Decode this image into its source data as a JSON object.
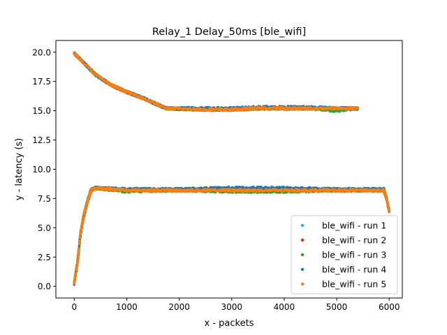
{
  "chart_data": {
    "type": "scatter",
    "title": "Relay_1 Delay_50ms [ble_wifi]",
    "xlabel": "x - packets",
    "ylabel": "y - latency (s)",
    "xlim": [
      -350,
      6250
    ],
    "ylim": [
      -1.0,
      21.0
    ],
    "xticks": [
      0,
      1000,
      2000,
      3000,
      4000,
      5000,
      6000
    ],
    "yticks": [
      0.0,
      2.5,
      5.0,
      7.5,
      10.0,
      12.5,
      15.0,
      17.5,
      20.0
    ],
    "xtick_labels": [
      "0",
      "1000",
      "2000",
      "3000",
      "4000",
      "5000",
      "6000"
    ],
    "ytick_labels": [
      "0.0",
      "2.5",
      "5.0",
      "7.5",
      "10.0",
      "12.5",
      "15.0",
      "17.5",
      "20.0"
    ],
    "grid": false,
    "legend_position": "lower-right",
    "series": [
      {
        "name": "ble_wifi - run 1",
        "color": "#17becf",
        "upper_curve": [
          [
            0,
            19.9
          ],
          [
            200,
            19.0
          ],
          [
            400,
            18.1
          ],
          [
            700,
            17.2
          ],
          [
            1000,
            16.6
          ],
          [
            1300,
            16.1
          ],
          [
            1500,
            15.7
          ],
          [
            1750,
            15.2
          ],
          [
            2500,
            15.1
          ],
          [
            3000,
            15.1
          ],
          [
            3500,
            15.2
          ],
          [
            4000,
            15.2
          ],
          [
            4500,
            15.2
          ],
          [
            5000,
            15.2
          ],
          [
            5400,
            15.2
          ]
        ],
        "lower_curve": [
          [
            0,
            0.3
          ],
          [
            60,
            2.0
          ],
          [
            120,
            4.5
          ],
          [
            180,
            6.0
          ],
          [
            250,
            7.2
          ],
          [
            320,
            8.2
          ],
          [
            400,
            8.4
          ],
          [
            1000,
            8.2
          ],
          [
            2000,
            8.2
          ],
          [
            3000,
            8.3
          ],
          [
            4000,
            8.3
          ],
          [
            5000,
            8.2
          ],
          [
            5900,
            8.2
          ],
          [
            5950,
            7.5
          ],
          [
            6000,
            6.4
          ]
        ]
      },
      {
        "name": "ble_wifi - run 2",
        "color": "#d62728",
        "upper_curve": [
          [
            0,
            19.9
          ],
          [
            200,
            19.0
          ],
          [
            400,
            18.1
          ],
          [
            700,
            17.2
          ],
          [
            1000,
            16.6
          ],
          [
            1300,
            16.1
          ],
          [
            1500,
            15.7
          ],
          [
            1750,
            15.2
          ],
          [
            2500,
            15.1
          ],
          [
            3000,
            15.1
          ],
          [
            3500,
            15.2
          ],
          [
            4000,
            15.2
          ],
          [
            4500,
            15.2
          ],
          [
            5000,
            15.2
          ],
          [
            5400,
            15.2
          ]
        ],
        "lower_curve": [
          [
            0,
            0.3
          ],
          [
            60,
            2.0
          ],
          [
            120,
            4.5
          ],
          [
            180,
            6.0
          ],
          [
            250,
            7.2
          ],
          [
            320,
            8.2
          ],
          [
            400,
            8.4
          ],
          [
            1000,
            8.2
          ],
          [
            2000,
            8.2
          ],
          [
            3000,
            8.3
          ],
          [
            4000,
            8.3
          ],
          [
            5000,
            8.2
          ],
          [
            5900,
            8.2
          ],
          [
            5950,
            7.5
          ],
          [
            6000,
            6.4
          ]
        ]
      },
      {
        "name": "ble_wifi - run 3",
        "color": "#2ca02c",
        "upper_curve": [
          [
            0,
            19.9
          ],
          [
            200,
            19.0
          ],
          [
            400,
            18.1
          ],
          [
            700,
            17.2
          ],
          [
            1000,
            16.6
          ],
          [
            1300,
            16.1
          ],
          [
            1500,
            15.7
          ],
          [
            1750,
            15.2
          ],
          [
            2500,
            15.1
          ],
          [
            3000,
            15.1
          ],
          [
            3500,
            15.2
          ],
          [
            4000,
            15.2
          ],
          [
            4500,
            15.2
          ],
          [
            5000,
            15.0
          ],
          [
            5400,
            15.2
          ]
        ],
        "lower_curve": [
          [
            0,
            0.3
          ],
          [
            60,
            2.0
          ],
          [
            120,
            4.5
          ],
          [
            180,
            6.0
          ],
          [
            250,
            7.2
          ],
          [
            320,
            8.2
          ],
          [
            400,
            8.4
          ],
          [
            1000,
            8.1
          ],
          [
            2000,
            8.2
          ],
          [
            3000,
            8.1
          ],
          [
            4000,
            8.1
          ],
          [
            5000,
            8.2
          ],
          [
            5900,
            8.2
          ],
          [
            5950,
            7.5
          ],
          [
            6000,
            6.4
          ]
        ]
      },
      {
        "name": "ble_wifi - run 4",
        "color": "#1f77b4",
        "upper_curve": [
          [
            0,
            19.9
          ],
          [
            200,
            19.0
          ],
          [
            400,
            18.1
          ],
          [
            700,
            17.2
          ],
          [
            1000,
            16.6
          ],
          [
            1300,
            16.1
          ],
          [
            1500,
            15.7
          ],
          [
            1750,
            15.2
          ],
          [
            2500,
            15.2
          ],
          [
            3000,
            15.2
          ],
          [
            3500,
            15.3
          ],
          [
            4000,
            15.3
          ],
          [
            4500,
            15.3
          ],
          [
            5000,
            15.2
          ],
          [
            5400,
            15.2
          ]
        ],
        "lower_curve": [
          [
            0,
            0.3
          ],
          [
            60,
            2.0
          ],
          [
            120,
            4.5
          ],
          [
            180,
            6.0
          ],
          [
            250,
            7.2
          ],
          [
            320,
            8.2
          ],
          [
            400,
            8.4
          ],
          [
            1000,
            8.3
          ],
          [
            2000,
            8.3
          ],
          [
            3000,
            8.4
          ],
          [
            4000,
            8.4
          ],
          [
            5000,
            8.3
          ],
          [
            5900,
            8.3
          ],
          [
            5950,
            7.5
          ],
          [
            6000,
            6.4
          ]
        ]
      },
      {
        "name": "ble_wifi - run 5",
        "color": "#ff7f0e",
        "upper_curve": [
          [
            0,
            19.9
          ],
          [
            200,
            19.0
          ],
          [
            400,
            18.1
          ],
          [
            700,
            17.2
          ],
          [
            1000,
            16.6
          ],
          [
            1300,
            16.1
          ],
          [
            1500,
            15.7
          ],
          [
            1750,
            15.2
          ],
          [
            2500,
            15.1
          ],
          [
            3000,
            15.1
          ],
          [
            3500,
            15.2
          ],
          [
            4000,
            15.2
          ],
          [
            4500,
            15.2
          ],
          [
            5000,
            15.2
          ],
          [
            5400,
            15.2
          ]
        ],
        "lower_curve": [
          [
            0,
            0.3
          ],
          [
            60,
            2.0
          ],
          [
            120,
            4.5
          ],
          [
            180,
            6.0
          ],
          [
            250,
            7.2
          ],
          [
            320,
            8.2
          ],
          [
            400,
            8.4
          ],
          [
            1000,
            8.2
          ],
          [
            2000,
            8.2
          ],
          [
            3000,
            8.2
          ],
          [
            4000,
            8.2
          ],
          [
            5000,
            8.2
          ],
          [
            5900,
            8.2
          ],
          [
            5950,
            7.5
          ],
          [
            6000,
            6.4
          ]
        ]
      }
    ]
  }
}
